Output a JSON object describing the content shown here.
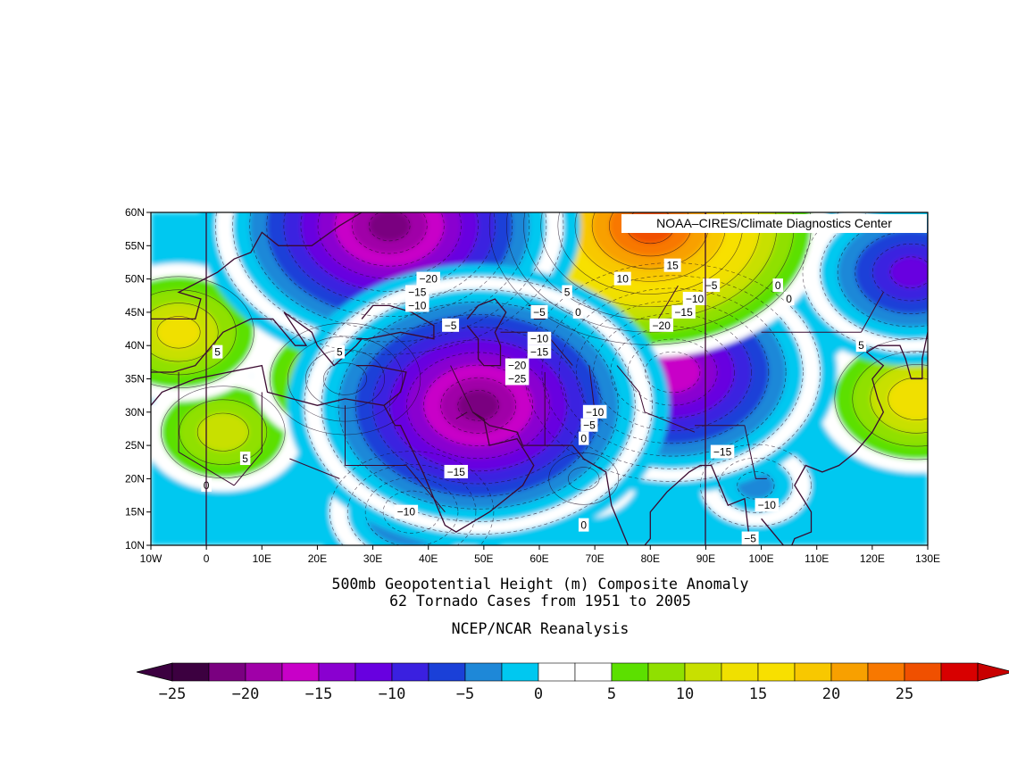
{
  "map": {
    "badge": "NOAA–CIRES/Climate Diagnostics Center",
    "lat_labels": [
      "60N",
      "55N",
      "50N",
      "45N",
      "40N",
      "35N",
      "30N",
      "25N",
      "20N",
      "15N",
      "10N"
    ],
    "lon_labels": [
      "10W",
      "0",
      "10E",
      "20E",
      "30E",
      "40E",
      "50E",
      "60E",
      "70E",
      "80E",
      "90E",
      "100E",
      "110E",
      "120E",
      "130E"
    ],
    "extent": {
      "lon_min": -10,
      "lon_max": 130,
      "lat_min": 10,
      "lat_max": 60
    }
  },
  "titles": {
    "line1": "500mb Geopotential Height (m) Composite Anomaly",
    "line2": "62 Tornado Cases from 1951 to 2005",
    "line3": "NCEP/NCAR Reanalysis"
  },
  "colorbar": {
    "labels": [
      "−25",
      "−20",
      "−15",
      "−10",
      "−5",
      "0",
      "5",
      "10",
      "15",
      "20",
      "25"
    ],
    "colors": [
      "#3c0040",
      "#7a0080",
      "#a000a8",
      "#c800c8",
      "#8a00d0",
      "#6800e0",
      "#3a20e0",
      "#1a40d8",
      "#1e88d8",
      "#00c8f0",
      "#ffffff",
      "#ffffff",
      "#5ce000",
      "#90e000",
      "#c8e000",
      "#f0e000",
      "#f8e000",
      "#f8c800",
      "#f8a000",
      "#f87800",
      "#f05000",
      "#d80000"
    ],
    "under_color": "#3c0040",
    "over_color": "#c80000"
  },
  "chart_data": {
    "type": "heatmap",
    "title": "500mb Geopotential Height (m) Composite Anomaly",
    "subtitle": "62 Tornado Cases from 1951 to 2005",
    "source": "NCEP/NCAR Reanalysis",
    "units": "m",
    "xlim": [
      -10,
      130
    ],
    "ylim": [
      10,
      60
    ],
    "contour_levels": [
      -25,
      -22.5,
      -20,
      -17.5,
      -15,
      -12.5,
      -10,
      -7.5,
      -5,
      -2.5,
      0,
      2.5,
      5,
      7.5,
      10,
      12.5,
      15,
      17.5,
      20,
      22.5,
      25
    ],
    "centers": [
      {
        "lon": 33,
        "lat": 58,
        "value": -26
      },
      {
        "lon": 49,
        "lat": 31,
        "value": -26
      },
      {
        "lon": 84,
        "lat": 36,
        "value": -22
      },
      {
        "lon": 127,
        "lat": 51,
        "value": -16
      },
      {
        "lon": 37,
        "lat": 15,
        "value": -12
      },
      {
        "lon": 99,
        "lat": 19,
        "value": -8
      },
      {
        "lon": 80,
        "lat": 58,
        "value": 24
      },
      {
        "lon": 128,
        "lat": 32,
        "value": 12
      },
      {
        "lon": -5,
        "lat": 42,
        "value": 11
      },
      {
        "lon": 25,
        "lat": 35,
        "value": 11
      },
      {
        "lon": 3,
        "lat": 27,
        "value": 9
      },
      {
        "lon": 68,
        "lat": 20,
        "value": 5
      }
    ],
    "contour_labels": [
      {
        "text": "−20",
        "lon": 40,
        "lat": 50
      },
      {
        "text": "−15",
        "lon": 38,
        "lat": 48
      },
      {
        "text": "−10",
        "lon": 38,
        "lat": 46
      },
      {
        "text": "−5",
        "lon": 44,
        "lat": 43
      },
      {
        "text": "−5",
        "lon": 60,
        "lat": 45
      },
      {
        "text": "−10",
        "lon": 60,
        "lat": 41
      },
      {
        "text": "−15",
        "lon": 60,
        "lat": 39
      },
      {
        "text": "−20",
        "lon": 56,
        "lat": 37
      },
      {
        "text": "−25",
        "lon": 56,
        "lat": 35
      },
      {
        "text": "−10",
        "lon": 70,
        "lat": 30
      },
      {
        "text": "−5",
        "lon": 69,
        "lat": 28
      },
      {
        "text": "0",
        "lon": 68,
        "lat": 26
      },
      {
        "text": "−15",
        "lon": 45,
        "lat": 21
      },
      {
        "text": "−10",
        "lon": 36,
        "lat": 15
      },
      {
        "text": "0",
        "lon": 0,
        "lat": 19
      },
      {
        "text": "0",
        "lon": 68,
        "lat": 13
      },
      {
        "text": "0",
        "lon": 67,
        "lat": 45
      },
      {
        "text": "5",
        "lon": 65,
        "lat": 48
      },
      {
        "text": "10",
        "lon": 75,
        "lat": 50
      },
      {
        "text": "15",
        "lon": 84,
        "lat": 52
      },
      {
        "text": "−5",
        "lon": 91,
        "lat": 49
      },
      {
        "text": "−10",
        "lon": 88,
        "lat": 47
      },
      {
        "text": "−15",
        "lon": 86,
        "lat": 45
      },
      {
        "text": "−20",
        "lon": 82,
        "lat": 43
      },
      {
        "text": "0",
        "lon": 103,
        "lat": 49
      },
      {
        "text": "0",
        "lon": 105,
        "lat": 47
      },
      {
        "text": "5",
        "lon": 2,
        "lat": 39
      },
      {
        "text": "5",
        "lon": 24,
        "lat": 39
      },
      {
        "text": "5",
        "lon": 7,
        "lat": 23
      },
      {
        "text": "5",
        "lon": 118,
        "lat": 40
      },
      {
        "text": "−15",
        "lon": 93,
        "lat": 24
      },
      {
        "text": "−10",
        "lon": 101,
        "lat": 16
      },
      {
        "text": "−5",
        "lon": 98,
        "lat": 11
      }
    ]
  }
}
